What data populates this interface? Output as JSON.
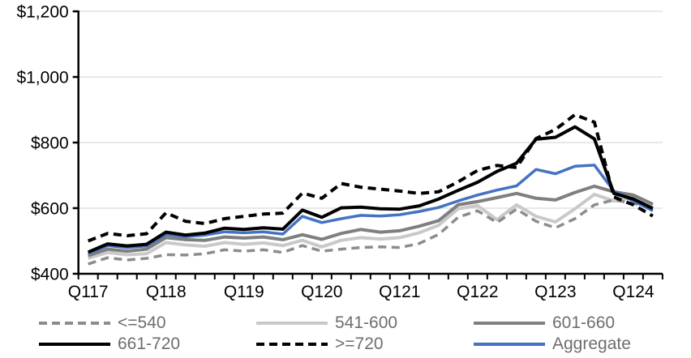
{
  "chart_data": {
    "type": "line",
    "title": "",
    "xlabel": "",
    "ylabel": "",
    "grid": "horizontal",
    "legend_position": "bottom",
    "x_quarters": [
      "2017Q1",
      "2017Q2",
      "2017Q3",
      "2017Q4",
      "2018Q1",
      "2018Q2",
      "2018Q3",
      "2018Q4",
      "2019Q1",
      "2019Q2",
      "2019Q3",
      "2019Q4",
      "2020Q1",
      "2020Q2",
      "2020Q3",
      "2020Q4",
      "2021Q1",
      "2021Q2",
      "2021Q3",
      "2021Q4",
      "2022Q1",
      "2022Q2",
      "2022Q3",
      "2022Q4",
      "2023Q1",
      "2023Q2",
      "2023Q3",
      "2023Q4",
      "2024Q1",
      "2024Q2"
    ],
    "x_axis_tick_labels": [
      "Q117",
      "Q118",
      "Q119",
      "Q120",
      "Q121",
      "Q122",
      "Q123",
      "Q124"
    ],
    "y_axis": {
      "min": 400,
      "max": 1200,
      "step": 200,
      "tick_labels": [
        "$400",
        "$600",
        "$800",
        "$1,000",
        "$1,200"
      ]
    },
    "series": [
      {
        "name": "<=540",
        "color": "#8c8c8c",
        "style": "dashed",
        "width": 3.5,
        "values": [
          430,
          449,
          442,
          447,
          458,
          457,
          461,
          473,
          469,
          473,
          465,
          486,
          469,
          475,
          480,
          482,
          480,
          492,
          520,
          572,
          592,
          556,
          597,
          560,
          540,
          568,
          610,
          625,
          615,
          600
        ]
      },
      {
        "name": "541-600",
        "color": "#c9c9c9",
        "style": "solid",
        "width": 4,
        "values": [
          447,
          465,
          458,
          461,
          495,
          488,
          484,
          495,
          490,
          494,
          486,
          502,
          482,
          502,
          510,
          506,
          510,
          525,
          548,
          598,
          608,
          565,
          610,
          575,
          558,
          598,
          642,
          622,
          632,
          607
        ]
      },
      {
        "name": "601-660",
        "color": "#7f7f7f",
        "style": "solid",
        "width": 4,
        "values": [
          455,
          475,
          469,
          475,
          510,
          504,
          502,
          512,
          509,
          512,
          504,
          519,
          505,
          523,
          535,
          527,
          531,
          545,
          562,
          610,
          620,
          632,
          645,
          630,
          625,
          648,
          667,
          650,
          640,
          612
        ]
      },
      {
        "name": "661-720",
        "color": "#000000",
        "style": "solid",
        "width": 4,
        "values": [
          466,
          491,
          485,
          490,
          527,
          518,
          524,
          539,
          535,
          540,
          536,
          594,
          572,
          601,
          603,
          598,
          597,
          607,
          628,
          654,
          679,
          712,
          737,
          810,
          816,
          848,
          811,
          645,
          628,
          599
        ]
      },
      {
        "name": ">=720",
        "color": "#000000",
        "style": "dashed",
        "width": 4,
        "values": [
          500,
          523,
          516,
          522,
          586,
          560,
          553,
          568,
          575,
          582,
          585,
          646,
          630,
          675,
          664,
          658,
          652,
          645,
          650,
          680,
          715,
          730,
          724,
          812,
          840,
          885,
          862,
          634,
          610,
          576
        ]
      },
      {
        "name": "Aggregate",
        "color": "#4472c4",
        "style": "solid",
        "width": 3.5,
        "values": [
          462,
          486,
          480,
          485,
          520,
          513,
          518,
          528,
          525,
          528,
          521,
          575,
          556,
          568,
          578,
          576,
          580,
          590,
          602,
          622,
          640,
          655,
          668,
          718,
          705,
          728,
          731,
          652,
          622,
          592
        ]
      }
    ],
    "draw_order": [
      1,
      0,
      2,
      5,
      3,
      4
    ],
    "colors": {
      "gridline": "#d9d9d9",
      "axis": "#000000",
      "tick_label": "#000000",
      "legend_text": "#6e6e6e"
    }
  },
  "legend": {
    "rows": [
      [
        0,
        1,
        2
      ],
      [
        3,
        4,
        5
      ]
    ]
  }
}
